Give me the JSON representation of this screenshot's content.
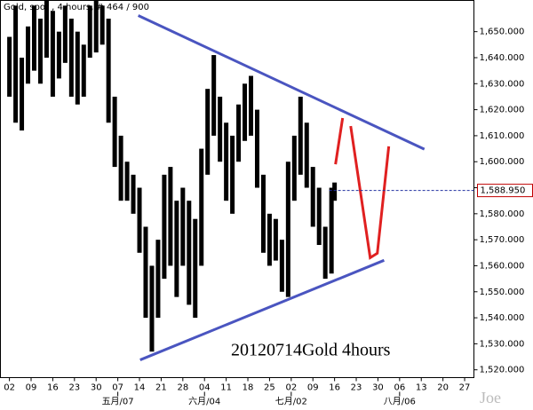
{
  "chart_data": {
    "type": "ohlc",
    "title": "Gold, spot , 4 hours, # 464 / 900",
    "annotation": "20120714Gold 4hours",
    "watermark": "Joe",
    "color": "#000000",
    "x": [
      0,
      2,
      4,
      6,
      8,
      10,
      12,
      14,
      16,
      18,
      20,
      22,
      24,
      26,
      28,
      30,
      32,
      34,
      36,
      38,
      40,
      42,
      44,
      46,
      48,
      50,
      52,
      54,
      56,
      58,
      60,
      62,
      64,
      66,
      68,
      70,
      72,
      74,
      76,
      78,
      80,
      82,
      84,
      86,
      88,
      90,
      92,
      94,
      96,
      98,
      100,
      102,
      104,
      105
    ],
    "high": [
      1648,
      1660,
      1640,
      1652,
      1660,
      1655,
      1662,
      1658,
      1650,
      1660,
      1655,
      1650,
      1645,
      1660,
      1662,
      1660,
      1655,
      1625,
      1610,
      1600,
      1595,
      1590,
      1575,
      1560,
      1570,
      1595,
      1598,
      1585,
      1590,
      1585,
      1578,
      1605,
      1628,
      1641,
      1625,
      1615,
      1610,
      1622,
      1630,
      1633,
      1620,
      1595,
      1580,
      1578,
      1570,
      1600,
      1610,
      1625,
      1615,
      1598,
      1590,
      1575,
      1590,
      1592
    ],
    "low": [
      1625,
      1615,
      1612,
      1630,
      1635,
      1630,
      1640,
      1625,
      1632,
      1638,
      1625,
      1622,
      1625,
      1640,
      1642,
      1645,
      1615,
      1598,
      1585,
      1585,
      1580,
      1565,
      1540,
      1527,
      1540,
      1555,
      1560,
      1548,
      1560,
      1545,
      1540,
      1560,
      1595,
      1610,
      1600,
      1585,
      1580,
      1600,
      1608,
      1610,
      1590,
      1565,
      1560,
      1562,
      1550,
      1548,
      1585,
      1595,
      1590,
      1575,
      1568,
      1555,
      1557,
      1585
    ],
    "last_price": {
      "value": 1588.95,
      "label": "1,588.950"
    },
    "trendlines": [
      {
        "color": "#4a55c0",
        "x": [
          41.6,
          134
        ],
        "y": [
          1656.2,
          1604.8
        ]
      },
      {
        "color": "#4a55c0",
        "x": [
          42.2,
          121
        ],
        "y": [
          1523.8,
          1562.1
        ]
      },
      {
        "color": "#e02020",
        "x": [
          105.3,
          107.6
        ],
        "y": [
          1599.0,
          1616.8
        ]
      },
      {
        "color": "#e02020",
        "x": [
          110.2,
          116.5,
          118.8,
          122.5
        ],
        "y": [
          1613.7,
          1563.1,
          1564.8,
          1605.9
        ]
      }
    ],
    "xlim": [
      -2.9,
      150
    ],
    "ylim": [
      1517,
      1662
    ],
    "xticks": [
      {
        "value": 0,
        "label": "02"
      },
      {
        "value": 7,
        "label": "09"
      },
      {
        "value": 14,
        "label": "16"
      },
      {
        "value": 21,
        "label": "23"
      },
      {
        "value": 28,
        "label": "30"
      },
      {
        "value": 35,
        "label": "07"
      },
      {
        "value": 42,
        "label": "14"
      },
      {
        "value": 49,
        "label": "21"
      },
      {
        "value": 56,
        "label": "28"
      },
      {
        "value": 63,
        "label": "04"
      },
      {
        "value": 70,
        "label": "11"
      },
      {
        "value": 77,
        "label": "18"
      },
      {
        "value": 84,
        "label": "25"
      },
      {
        "value": 91,
        "label": "02"
      },
      {
        "value": 98,
        "label": "09"
      },
      {
        "value": 105,
        "label": "16"
      },
      {
        "value": 112,
        "label": "23"
      },
      {
        "value": 119,
        "label": "30"
      },
      {
        "value": 126,
        "label": "06"
      },
      {
        "value": 133,
        "label": "13"
      },
      {
        "value": 140,
        "label": "20"
      },
      {
        "value": 147,
        "label": "27"
      }
    ],
    "month_ticks": [
      {
        "value": 35,
        "label": "五月/07"
      },
      {
        "value": 63,
        "label": "六月/04"
      },
      {
        "value": 91,
        "label": "七月/02"
      },
      {
        "value": 126,
        "label": "八月/06"
      }
    ],
    "yticks": [
      {
        "value": 1520,
        "label": "1,520.000"
      },
      {
        "value": 1530,
        "label": "1,530.000"
      },
      {
        "value": 1540,
        "label": "1,540.000"
      },
      {
        "value": 1550,
        "label": "1,550.000"
      },
      {
        "value": 1560,
        "label": "1,560.000"
      },
      {
        "value": 1570,
        "label": "1,570.000"
      },
      {
        "value": 1580,
        "label": "1,580.000"
      },
      {
        "value": 1590,
        "label": "1,590.000"
      },
      {
        "value": 1600,
        "label": "1,600.000"
      },
      {
        "value": 1610,
        "label": "1,610.000"
      },
      {
        "value": 1620,
        "label": "1,620.000"
      },
      {
        "value": 1630,
        "label": "1,630.000"
      },
      {
        "value": 1640,
        "label": "1,640.000"
      },
      {
        "value": 1650,
        "label": "1,650.000"
      }
    ]
  }
}
